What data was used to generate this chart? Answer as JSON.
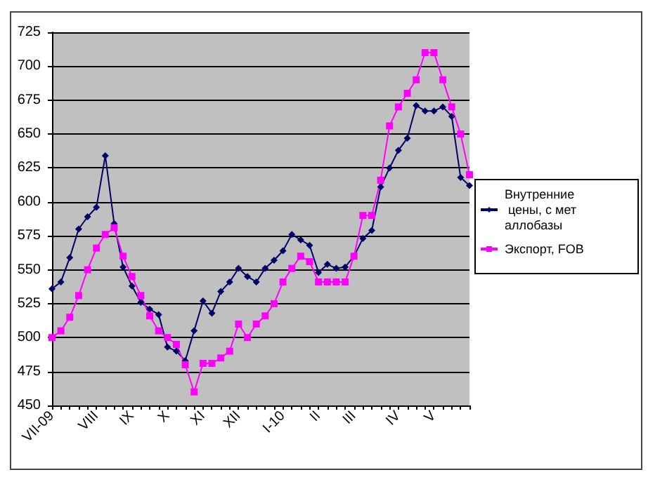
{
  "chart_data": {
    "type": "line",
    "categories": [
      "VII-09",
      null,
      null,
      null,
      null,
      "VIII",
      null,
      null,
      null,
      "IX",
      null,
      null,
      null,
      "X",
      null,
      null,
      null,
      "XI",
      null,
      null,
      null,
      "XII",
      null,
      null,
      null,
      null,
      "I-10",
      null,
      null,
      null,
      "II",
      null,
      null,
      null,
      "III",
      null,
      null,
      null,
      null,
      "IV",
      null,
      null,
      null,
      "V",
      null,
      null,
      null,
      null
    ],
    "series": [
      {
        "name": "Внутренние цены, с мет аллобазы",
        "color": "#000066",
        "marker": "diamond",
        "values": [
          536,
          541,
          559,
          580,
          589,
          596,
          634,
          584,
          552,
          538,
          526,
          521,
          517,
          493,
          490,
          483,
          505,
          527,
          518,
          534,
          541,
          551,
          545,
          541,
          551,
          557,
          564,
          576,
          572,
          568,
          548,
          554,
          551,
          552,
          560,
          573,
          579,
          611,
          625,
          638,
          647,
          671,
          667,
          667,
          670,
          663,
          618,
          612
        ]
      },
      {
        "name": "Экспорт, FOB",
        "color": "#ff00ff",
        "marker": "square",
        "values": [
          500,
          505,
          515,
          531,
          550,
          566,
          576,
          581,
          560,
          545,
          531,
          516,
          505,
          500,
          495,
          480,
          460,
          481,
          481,
          485,
          490,
          510,
          500,
          510,
          516,
          525,
          541,
          551,
          560,
          556,
          541,
          541,
          541,
          541,
          560,
          590,
          590,
          616,
          656,
          670,
          680,
          690,
          710,
          710,
          690,
          670,
          650,
          620
        ]
      }
    ],
    "ylim": [
      450,
      725
    ],
    "yticks": [
      450,
      475,
      500,
      525,
      550,
      575,
      600,
      625,
      650,
      675,
      700,
      725
    ],
    "grid": "y",
    "legend": "right",
    "line_style": "solid"
  }
}
